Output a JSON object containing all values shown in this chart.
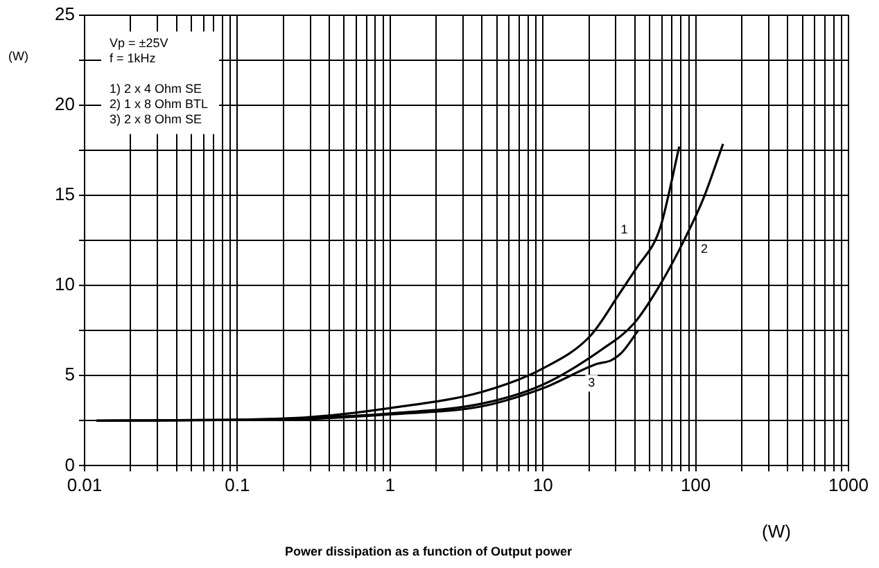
{
  "chart_data": {
    "type": "line",
    "title": "Power dissipation as a function of Output power",
    "xlabel": "(W)",
    "ylabel": "(W)",
    "annotations": [
      "Vp = ±25V",
      "f = 1kHz",
      "1) 2 x 4 Ohm SE",
      "2) 1 x 8 Ohm BTL",
      "3) 2 x 8 Ohm SE"
    ],
    "series": [
      {
        "name": "1",
        "color": "#000000",
        "x": [
          0.012,
          0.1,
          0.3,
          1,
          4,
          10,
          20.4,
          32,
          42,
          54,
          60,
          78
        ],
        "values": [
          2.5,
          2.55,
          2.7,
          3.2,
          4.1,
          5.4,
          7.2,
          9.6,
          11.1,
          12.45,
          13.5,
          17.7
        ]
      },
      {
        "name": "2",
        "color": "#000000",
        "x": [
          0.012,
          0.1,
          0.3,
          1,
          4,
          10,
          24.3,
          39.5,
          60,
          85,
          112,
          151
        ],
        "values": [
          2.5,
          2.55,
          2.65,
          2.9,
          3.45,
          4.5,
          6.45,
          7.9,
          10.2,
          12.6,
          14.8,
          17.85
        ]
      },
      {
        "name": "3",
        "color": "#000000",
        "x": [
          0.012,
          0.1,
          0.3,
          1,
          4,
          10,
          22.6,
          28,
          33,
          42
        ],
        "values": [
          2.5,
          2.55,
          2.6,
          2.85,
          3.3,
          4.3,
          5.65,
          5.85,
          6.3,
          7.5
        ]
      }
    ],
    "log": "x",
    "xlim": [
      0.01,
      1000
    ],
    "xticks": [
      0.01,
      {
        "value": 0.02,
        "label": null
      },
      {
        "value": 0.03,
        "label": null
      },
      {
        "value": 0.04,
        "label": null
      },
      {
        "value": 0.05,
        "label": null
      },
      {
        "value": 0.06,
        "label": null
      },
      {
        "value": 0.07,
        "label": null
      },
      {
        "value": 0.08,
        "label": null
      },
      {
        "value": 0.09,
        "label": null
      },
      0.1,
      {
        "value": 0.2,
        "label": null
      },
      {
        "value": 0.3,
        "label": null
      },
      {
        "value": 0.4,
        "label": null
      },
      {
        "value": 0.5,
        "label": null
      },
      {
        "value": 0.6,
        "label": null
      },
      {
        "value": 0.7,
        "label": null
      },
      {
        "value": 0.8,
        "label": null
      },
      {
        "value": 0.9,
        "label": null
      },
      1,
      {
        "value": 2,
        "label": null
      },
      {
        "value": 3,
        "label": null
      },
      {
        "value": 4,
        "label": null
      },
      {
        "value": 5,
        "label": null
      },
      {
        "value": 6,
        "label": null
      },
      {
        "value": 7,
        "label": null
      },
      {
        "value": 8,
        "label": null
      },
      {
        "value": 9,
        "label": null
      },
      10,
      {
        "value": 20,
        "label": null
      },
      {
        "value": 30,
        "label": null
      },
      {
        "value": 40,
        "label": null
      },
      {
        "value": 50,
        "label": null
      },
      {
        "value": 60,
        "label": null
      },
      {
        "value": 70,
        "label": null
      },
      {
        "value": 80,
        "label": null
      },
      {
        "value": 90,
        "label": null
      },
      100,
      {
        "value": 200,
        "label": null
      },
      {
        "value": 300,
        "label": null
      },
      {
        "value": 400,
        "label": null
      },
      {
        "value": 500,
        "label": null
      },
      {
        "value": 600,
        "label": null
      },
      {
        "value": 700,
        "label": null
      },
      {
        "value": 800,
        "label": null
      },
      {
        "value": 900,
        "label": null
      },
      1000
    ],
    "ylim": [
      0,
      25
    ],
    "yticks": [
      0,
      {
        "value": 2.5,
        "label": null
      },
      5,
      {
        "value": 7.5,
        "label": null
      },
      10,
      {
        "value": 12.5,
        "label": null
      },
      15,
      {
        "value": 17.5,
        "label": null
      },
      20,
      {
        "value": 22.5,
        "label": null
      },
      25
    ],
    "grid": true,
    "legend": false,
    "marker": "none",
    "line_style": "solid"
  }
}
